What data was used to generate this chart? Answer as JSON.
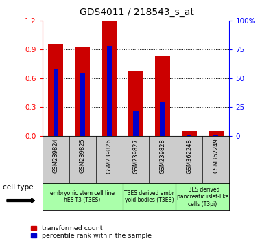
{
  "title": "GDS4011 / 218543_s_at",
  "samples": [
    "GSM239824",
    "GSM239825",
    "GSM239826",
    "GSM239827",
    "GSM239828",
    "GSM362248",
    "GSM362249"
  ],
  "transformed_counts": [
    0.96,
    0.93,
    1.19,
    0.68,
    0.83,
    0.05,
    0.05
  ],
  "percentile_ranks": [
    58,
    55,
    78,
    22,
    30,
    1,
    1
  ],
  "ylim_left": [
    0,
    1.2
  ],
  "ylim_right": [
    0,
    100
  ],
  "yticks_left": [
    0,
    0.3,
    0.6,
    0.9,
    1.2
  ],
  "yticks_right": [
    0,
    25,
    50,
    75,
    100
  ],
  "bar_color": "#cc0000",
  "percentile_color": "#0000cc",
  "red_bar_width": 0.55,
  "blue_bar_width": 0.18,
  "cell_type_area_color": "#aaffaa",
  "tick_area_color": "#cccccc",
  "groups": [
    {
      "start": 0,
      "end": 2,
      "label": "embryonic stem cell line\nhES-T3 (T3ES)"
    },
    {
      "start": 3,
      "end": 4,
      "label": "T3ES derived embr\nyoid bodies (T3EB)"
    },
    {
      "start": 5,
      "end": 6,
      "label": "T3ES derived\npancreatic islet-like\ncells (T3pi)"
    }
  ],
  "legend_items": [
    {
      "label": "transformed count",
      "color": "#cc0000"
    },
    {
      "label": "percentile rank within the sample",
      "color": "#0000cc"
    }
  ],
  "cell_type_label": "cell type"
}
